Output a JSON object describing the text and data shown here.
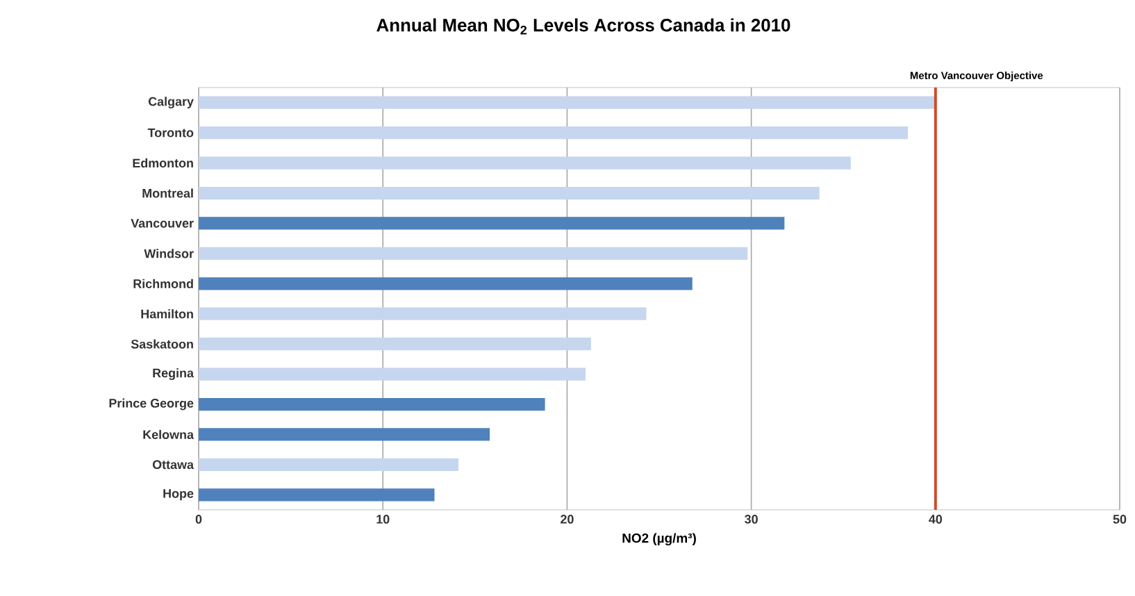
{
  "chart_data": {
    "type": "bar",
    "orientation": "horizontal",
    "title": "Annual Mean NO$_{2}$ Levels Across Canada in 2010",
    "xlabel": "NO2 (µg/m³)",
    "categories": [
      "Calgary",
      "Toronto",
      "Edmonton",
      "Montreal",
      "Vancouver",
      "Windsor",
      "Richmond",
      "Hamilton",
      "Saskatoon",
      "Regina",
      "Prince George",
      "Kelowna",
      "Ottawa",
      "Hope"
    ],
    "values": [
      40,
      38.5,
      35.4,
      33.7,
      31.8,
      29.8,
      26.8,
      24.3,
      21.3,
      21.0,
      18.8,
      15.8,
      14.1,
      12.8
    ],
    "colors": [
      "#c6d6ee",
      "#c6d6ee",
      "#c6d6ee",
      "#c6d6ee",
      "#4f81bd",
      "#c6d6ee",
      "#4f81bd",
      "#c6d6ee",
      "#c6d6ee",
      "#c6d6ee",
      "#4f81bd",
      "#4f81bd",
      "#c6d6ee",
      "#4f81bd"
    ],
    "xlim": [
      0,
      50
    ],
    "xticks": [
      0,
      10,
      20,
      30,
      40,
      50
    ],
    "grid": "x",
    "ref_lines": [
      {
        "axis": "x",
        "value": 40,
        "label": "Metro Vancouver Objective",
        "color": "#d04a2a"
      }
    ]
  }
}
